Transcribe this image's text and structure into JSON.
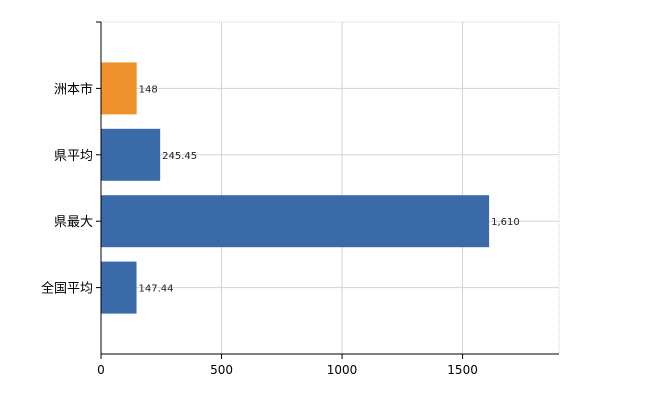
{
  "chart_data": {
    "type": "bar",
    "orientation": "horizontal",
    "categories": [
      "洲本市",
      "県平均",
      "県最大",
      "全国平均"
    ],
    "series": [
      {
        "values": [
          148,
          245.45,
          1610,
          147.44
        ]
      }
    ],
    "data_labels": [
      "148",
      "245.45",
      "1,610",
      "147.44"
    ],
    "bar_colors": [
      "#f0922b",
      "#3a6aa8",
      "#3a6aa8",
      "#3a6aa8"
    ],
    "xlim": [
      0,
      1900
    ],
    "xticks": [
      0,
      500,
      1000,
      1500
    ],
    "xtick_labels": [
      "0",
      "500",
      "1000",
      "1500"
    ],
    "grid": true,
    "grid_color": "#d3d3d3",
    "axis_color": "#000000",
    "title": "",
    "xlabel": "",
    "ylabel": ""
  }
}
